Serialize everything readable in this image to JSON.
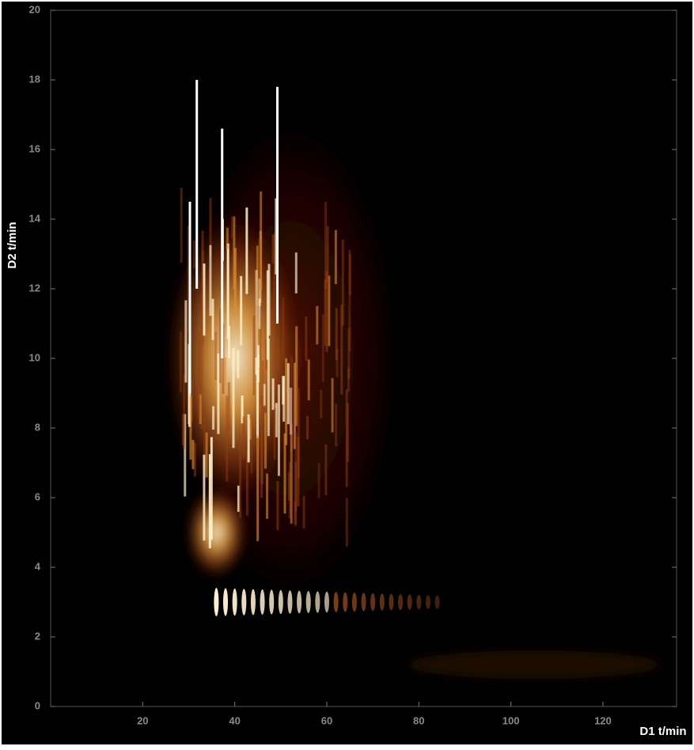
{
  "chart_data": {
    "type": "heatmap",
    "x_label": "D1 t/min",
    "y_label": "D2 t/min",
    "xlim": [
      0,
      136
    ],
    "xticks": [
      20,
      40,
      60,
      80,
      100,
      120
    ],
    "ylim": [
      0,
      20
    ],
    "yticks": [
      0,
      2,
      4,
      6,
      8,
      10,
      12,
      14,
      16,
      18,
      20
    ]
  }
}
